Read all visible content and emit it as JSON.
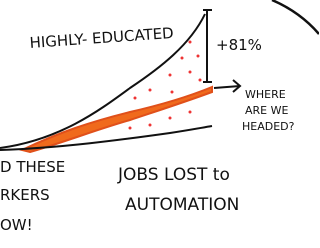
{
  "labels": {
    "top": "HIGHLY- EDUCATED",
    "percent": "+81%",
    "question": [
      "WHERE",
      "ARE WE",
      "HEADED?"
    ],
    "bottom": [
      "JOBS LOST to",
      "AUTOMATION"
    ],
    "left": [
      "D THESE",
      "RKERS",
      "OW!"
    ]
  }
}
